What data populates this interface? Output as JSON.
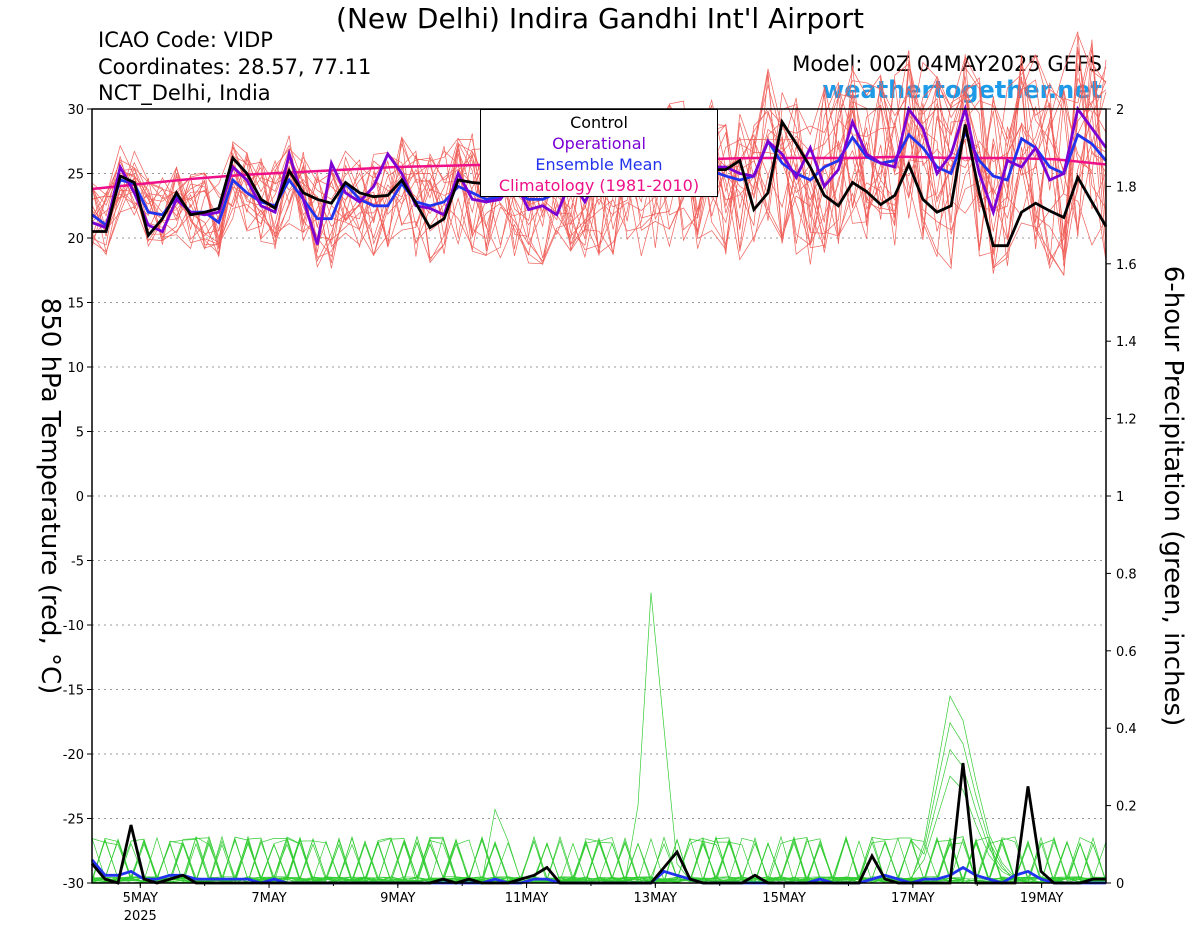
{
  "header": {
    "title": "(New Delhi) Indira Gandhi Int'l Airport",
    "icao": "ICAO Code: VIDP",
    "coordinates": "Coordinates: 28.57, 77.11",
    "region": "NCT_Delhi, India",
    "model": "Model: 00Z 04MAY2025 GEFS",
    "site": "weathertogether.net"
  },
  "legend": {
    "control": "Control",
    "operational": "Operational",
    "ensemble_mean": "Ensemble Mean",
    "climatology": "Climatology (1981-2010)"
  },
  "colors": {
    "control": "#000000",
    "operational": "#7b00d4",
    "ensemble_mean": "#2233ee",
    "climatology": "#ee1088",
    "members_temp": "#f0605a",
    "members_precip": "#33cc33",
    "site": "#1e9be8"
  },
  "chart_data": {
    "type": "line",
    "xlabel": "",
    "ylabel": "850 hPa Temperature (red, °C)",
    "y2label": "6-hour Precipitation (green, inches)",
    "ylim": [
      -30,
      30
    ],
    "y2lim": [
      0,
      2
    ],
    "yticks": [
      "30",
      "25",
      "20",
      "15",
      "10",
      "5",
      "0",
      "-5",
      "-10",
      "-15",
      "-20",
      "-25",
      "-30"
    ],
    "y2ticks": [
      "2",
      "1.8",
      "1.6",
      "1.4",
      "1.2",
      "1",
      "0.8",
      "0.6",
      "0.4",
      "0.2",
      "0"
    ],
    "xticks": [
      {
        "label": "5MAY",
        "sub": "2025",
        "day": 5
      },
      {
        "label": "7MAY",
        "sub": "",
        "day": 7
      },
      {
        "label": "9MAY",
        "sub": "",
        "day": 9
      },
      {
        "label": "11MAY",
        "sub": "",
        "day": 11
      },
      {
        "label": "13MAY",
        "sub": "",
        "day": 13
      },
      {
        "label": "15MAY",
        "sub": "",
        "day": 15
      },
      {
        "label": "17MAY",
        "sub": "",
        "day": 17
      },
      {
        "label": "19MAY",
        "sub": "",
        "day": 19
      }
    ],
    "x_start_day": 4.25,
    "x_end_day": 20.0,
    "grid": "horizontal-dotted",
    "series": {
      "control_temp": [
        20.5,
        20.5,
        24.8,
        24.3,
        20.2,
        21.5,
        23.5,
        21.8,
        22.0,
        22.3,
        26.2,
        25.0,
        23.0,
        22.3,
        25.2,
        23.5,
        23.0,
        22.7,
        24.3,
        23.5,
        23.2,
        23.3,
        24.5,
        22.7,
        20.8,
        21.5,
        24.5,
        24.3,
        24.2,
        24.5,
        24.5,
        24.3,
        24.0,
        24.3,
        24.5,
        24.5,
        24.3,
        24.8,
        24.8,
        25.0,
        25.0,
        25.0,
        25.0,
        25.0,
        25.3,
        25.3,
        26.0,
        22.2,
        23.5,
        29.0,
        27.3,
        25.5,
        23.3,
        22.5,
        24.3,
        23.6,
        22.6,
        23.3,
        25.7,
        23.0,
        22.0,
        22.5,
        28.8,
        23.5,
        19.4,
        19.4,
        22.0,
        22.7,
        22.1,
        21.6,
        24.7,
        22.8,
        20.9
      ],
      "operational_temp": [
        21.2,
        20.8,
        25.5,
        23.5,
        21.0,
        20.5,
        23.0,
        22.0,
        21.8,
        22.0,
        25.5,
        24.5,
        22.5,
        22.0,
        26.5,
        23.0,
        19.5,
        25.8,
        23.5,
        22.8,
        24.0,
        26.5,
        25.0,
        22.5,
        22.3,
        21.8,
        25.0,
        23.0,
        22.8,
        23.0,
        24.5,
        22.2,
        22.5,
        21.8,
        24.5,
        22.8,
        24.8,
        24.3,
        26.5,
        25.0,
        24.5,
        26.0,
        25.8,
        24.5,
        25.5,
        25.5,
        25.0,
        24.8,
        27.5,
        26.5,
        24.7,
        27.0,
        24.0,
        25.3,
        29.0,
        26.5,
        25.8,
        25.5,
        30.0,
        28.5,
        25.0,
        26.5,
        30.0,
        25.0,
        22.0,
        26.0,
        25.5,
        27.0,
        24.5,
        25.0,
        30.0,
        28.5,
        27.0
      ],
      "mean_temp": [
        21.8,
        21.0,
        24.5,
        24.2,
        22.0,
        21.8,
        23.2,
        22.0,
        22.0,
        21.2,
        24.5,
        23.5,
        22.8,
        22.5,
        24.5,
        23.0,
        21.5,
        21.5,
        24.2,
        23.0,
        22.5,
        22.5,
        24.2,
        22.8,
        22.5,
        22.8,
        24.0,
        23.5,
        23.0,
        23.2,
        23.5,
        23.0,
        23.0,
        23.5,
        23.8,
        23.5,
        23.8,
        24.0,
        24.2,
        24.2,
        24.5,
        25.0,
        25.0,
        24.8,
        25.2,
        24.8,
        24.5,
        24.8,
        27.5,
        25.8,
        25.0,
        24.5,
        25.5,
        26.0,
        27.8,
        26.3,
        25.8,
        26.0,
        28.0,
        27.0,
        25.5,
        25.0,
        28.2,
        26.0,
        24.8,
        24.5,
        27.7,
        27.0,
        25.5,
        25.0,
        28.0,
        27.3,
        26.0
      ],
      "climatology_temp": [
        23.8,
        24.2,
        24.6,
        24.9,
        25.1,
        25.3,
        25.5,
        25.6,
        25.7,
        25.8,
        25.9,
        26.0,
        26.1,
        26.2,
        26.2,
        26.2,
        26.3,
        26.2,
        26.2,
        26.1,
        25.7
      ],
      "control_precip": [
        0.05,
        0.01,
        0.0,
        0.15,
        0.01,
        0.0,
        0.01,
        0.02,
        0.0,
        0.0,
        0.0,
        0.0,
        0.0,
        0.0,
        0.0,
        0.0,
        0.0,
        0.0,
        0.0,
        0.0,
        0.0,
        0.0,
        0.0,
        0.0,
        0.0,
        0.0,
        0.0,
        0.01,
        0.0,
        0.01,
        0.0,
        0.0,
        0.0,
        0.01,
        0.02,
        0.04,
        0.0,
        0.0,
        0.0,
        0.0,
        0.0,
        0.0,
        0.0,
        0.0,
        0.04,
        0.08,
        0.01,
        0.0,
        0.0,
        0.0,
        0.0,
        0.02,
        0.0,
        0.0,
        0.0,
        0.0,
        0.0,
        0.0,
        0.0,
        0.0,
        0.07,
        0.01,
        0.0,
        0.0,
        0.0,
        0.0,
        0.0,
        0.31,
        0.0,
        0.0,
        0.0,
        0.0,
        0.25,
        0.03,
        0.0,
        0.0,
        0.0,
        0.01,
        0.01
      ],
      "mean_precip": [
        0.06,
        0.02,
        0.02,
        0.03,
        0.01,
        0.01,
        0.02,
        0.02,
        0.01,
        0.01,
        0.01,
        0.01,
        0.01,
        0.0,
        0.01,
        0.0,
        0.0,
        0.0,
        0.0,
        0.0,
        0.0,
        0.0,
        0.0,
        0.0,
        0.0,
        0.0,
        0.0,
        0.0,
        0.0,
        0.0,
        0.0,
        0.01,
        0.0,
        0.0,
        0.01,
        0.01,
        0.0,
        0.0,
        0.0,
        0.0,
        0.0,
        0.0,
        0.0,
        0.0,
        0.03,
        0.02,
        0.01,
        0.0,
        0.0,
        0.0,
        0.0,
        0.0,
        0.0,
        0.0,
        0.0,
        0.0,
        0.01,
        0.0,
        0.0,
        0.0,
        0.01,
        0.02,
        0.01,
        0.0,
        0.01,
        0.01,
        0.02,
        0.04,
        0.02,
        0.01,
        0.0,
        0.02,
        0.03,
        0.01,
        0.0,
        0.0,
        0.0,
        0.0,
        0.0
      ]
    }
  }
}
